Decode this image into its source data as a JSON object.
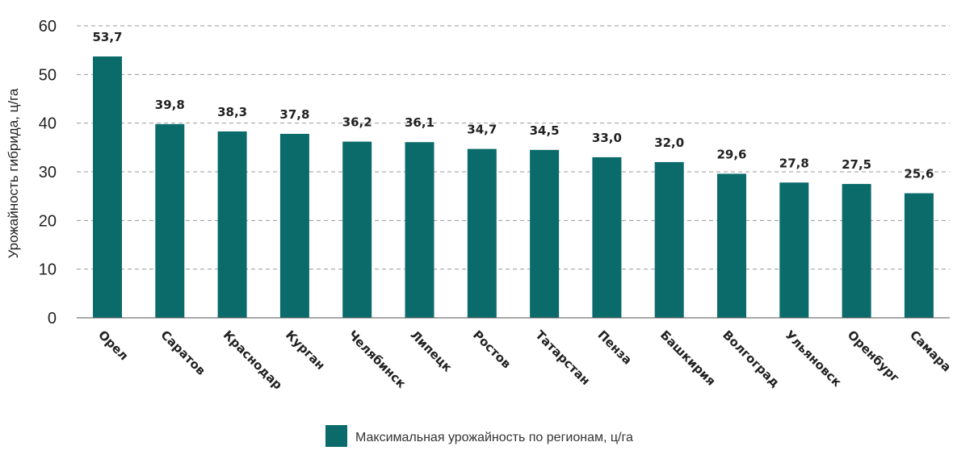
{
  "chart_data": {
    "type": "bar",
    "title": "",
    "xlabel": "",
    "ylabel": "Урожайность гибрида, ц/га",
    "ylim": [
      0,
      60
    ],
    "yticks": [
      0,
      10,
      20,
      30,
      40,
      50,
      60
    ],
    "grid": true,
    "categories": [
      "Орел",
      "Саратов",
      "Краснодар",
      "Курган",
      "Челябинск",
      "Липецк",
      "Ростов",
      "Татарстан",
      "Пенза",
      "Башкирия",
      "Волгоград",
      "Ульяновск",
      "Оренбург",
      "Самара"
    ],
    "values": [
      53.7,
      39.8,
      38.3,
      37.8,
      36.2,
      36.1,
      34.7,
      34.5,
      33.0,
      32.0,
      29.6,
      27.8,
      27.5,
      25.6
    ],
    "value_labels": [
      "53,7",
      "39,8",
      "38,3",
      "37,8",
      "36,2",
      "36,1",
      "34,7",
      "34,5",
      "33,0",
      "32,0",
      "29,6",
      "27,8",
      "27,5",
      "25,6"
    ],
    "legend": {
      "label": "Максимальная урожайность по регионам, ц/га",
      "position": "bottom-center"
    },
    "colors": {
      "bar": "#0b6b6b",
      "grid": "#9a9a9a",
      "axis": "#555555"
    }
  }
}
